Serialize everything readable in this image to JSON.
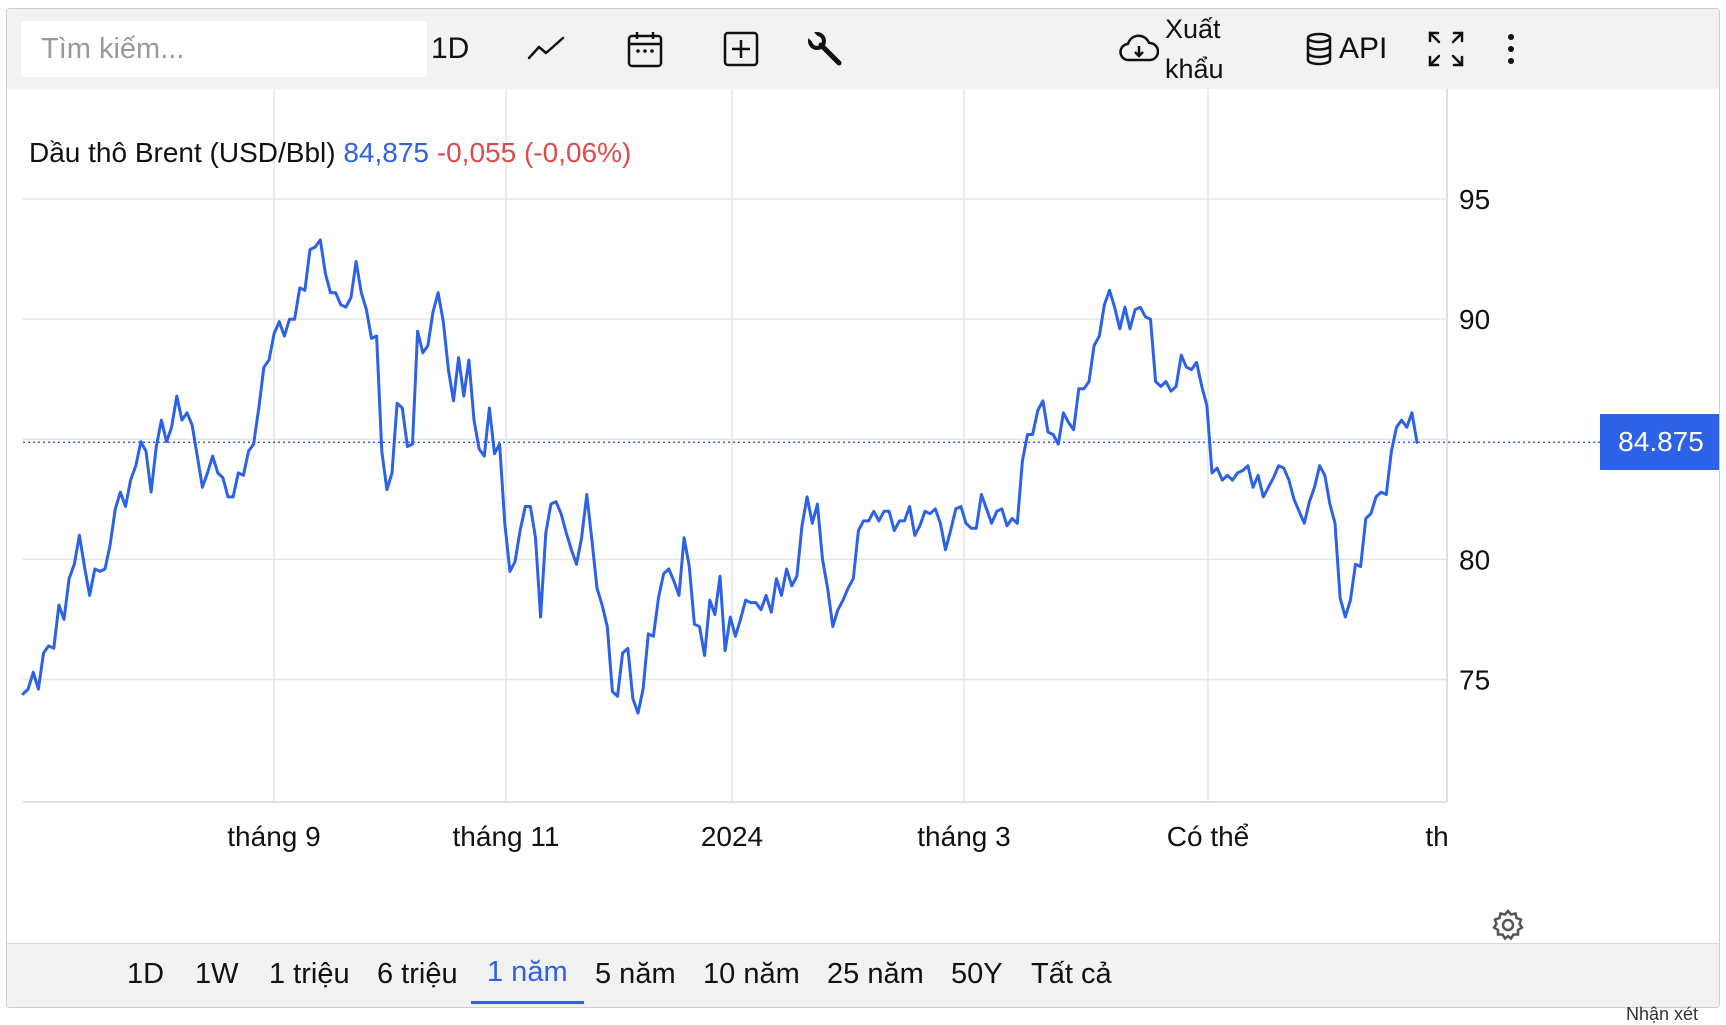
{
  "search": {
    "placeholder": "Tìm kiếm..."
  },
  "toolbar": {
    "interval_label": "1D",
    "export_label_1": "Xuất",
    "export_label_2": "khẩu",
    "api_label": "API"
  },
  "legend": {
    "name": "Dầu thô Brent (USD/Bbl)",
    "price": "84,875",
    "change": "-0,055 (-0,06%)"
  },
  "price_tag": "84.875",
  "ranges": [
    {
      "label": "1D",
      "active": false
    },
    {
      "label": "1W",
      "active": false
    },
    {
      "label": "1 triệu",
      "active": false
    },
    {
      "label": "6 triệu",
      "active": false
    },
    {
      "label": "1 năm",
      "active": true
    },
    {
      "label": "5 năm",
      "active": false
    },
    {
      "label": "10 năm",
      "active": false
    },
    {
      "label": "25 năm",
      "active": false
    },
    {
      "label": "50Y",
      "active": false
    },
    {
      "label": "Tất cả",
      "active": false
    }
  ],
  "footer_note": "Nhận xét",
  "colors": {
    "line": "#2d62e6",
    "negative": "#e04a4a",
    "grid": "#e6e6e6",
    "toolbar_bg": "#f2f2f2"
  },
  "chart_data": {
    "type": "line",
    "series": [
      {
        "name": "Dầu thô Brent (USD/Bbl)",
        "values": [
          74.4,
          74.6,
          75.3,
          74.6,
          76.1,
          76.4,
          76.3,
          78.1,
          77.5,
          79.2,
          79.8,
          81.0,
          79.7,
          78.5,
          79.6,
          79.5,
          79.6,
          80.6,
          82.1,
          82.8,
          82.2,
          83.3,
          83.9,
          84.9,
          84.5,
          82.8,
          84.7,
          85.8,
          84.9,
          85.5,
          86.8,
          85.8,
          86.1,
          85.6,
          84.3,
          83.0,
          83.6,
          84.3,
          83.6,
          83.4,
          82.6,
          82.6,
          83.6,
          83.5,
          84.5,
          84.8,
          86.3,
          88.0,
          88.3,
          89.4,
          89.9,
          89.3,
          90.0,
          90.0,
          91.3,
          91.2,
          92.9,
          93.0,
          93.3,
          91.9,
          91.1,
          91.1,
          90.6,
          90.5,
          90.9,
          92.4,
          91.1,
          90.4,
          89.2,
          89.3,
          84.5,
          82.9,
          83.6,
          86.5,
          86.3,
          84.7,
          84.8,
          89.5,
          88.6,
          88.9,
          90.3,
          91.1,
          89.9,
          87.9,
          86.6,
          88.4,
          86.8,
          88.3,
          85.8,
          84.6,
          84.3,
          86.3,
          84.4,
          84.8,
          81.5,
          79.5,
          79.9,
          81.2,
          82.2,
          82.2,
          80.9,
          77.6,
          81.1,
          82.3,
          82.4,
          81.9,
          81.1,
          80.4,
          79.8,
          80.9,
          82.7,
          80.8,
          78.8,
          78.1,
          77.2,
          74.5,
          74.3,
          76.1,
          76.3,
          74.2,
          73.6,
          74.6,
          76.9,
          76.8,
          78.4,
          79.4,
          79.6,
          79.1,
          78.5,
          80.9,
          79.7,
          77.3,
          77.2,
          76.0,
          78.3,
          77.7,
          79.3,
          76.2,
          77.6,
          76.8,
          77.5,
          78.3,
          78.2,
          78.2,
          77.9,
          78.5,
          77.8,
          79.2,
          78.5,
          79.6,
          78.9,
          79.3,
          81.4,
          82.6,
          81.5,
          82.3,
          80.0,
          78.8,
          77.2,
          77.9,
          78.3,
          78.8,
          79.2,
          81.2,
          81.6,
          81.6,
          82.0,
          81.6,
          82.0,
          82.0,
          81.2,
          81.6,
          81.6,
          82.2,
          81.0,
          81.4,
          82.0,
          81.9,
          82.1,
          81.5,
          80.4,
          81.2,
          82.1,
          82.2,
          81.5,
          81.3,
          81.3,
          82.7,
          82.1,
          81.5,
          82.0,
          82.1,
          81.4,
          81.7,
          81.5,
          84.1,
          85.2,
          85.2,
          86.2,
          86.6,
          85.3,
          85.2,
          84.8,
          86.1,
          85.7,
          85.4,
          87.1,
          87.1,
          87.4,
          88.9,
          89.3,
          90.6,
          91.2,
          90.5,
          89.6,
          90.5,
          89.6,
          90.4,
          90.5,
          90.1,
          90.0,
          87.4,
          87.2,
          87.4,
          87.0,
          87.2,
          88.5,
          88.0,
          87.9,
          88.2,
          87.2,
          86.4,
          83.6,
          83.8,
          83.3,
          83.5,
          83.3,
          83.6,
          83.7,
          83.9,
          83.0,
          83.5,
          82.6,
          83.0,
          83.4,
          83.9,
          83.8,
          83.3,
          82.5,
          82.0,
          81.5,
          82.4,
          83.0,
          83.9,
          83.5,
          82.3,
          81.5,
          78.4,
          77.6,
          78.3,
          79.8,
          79.7,
          81.7,
          81.9,
          82.6,
          82.8,
          82.7,
          84.5,
          85.5,
          85.8,
          85.5,
          86.1,
          84.875
        ]
      }
    ],
    "x_tick_labels": [
      "tháng 9",
      "tháng 11",
      "2024",
      "tháng 3",
      "Có thể",
      "th"
    ],
    "y_ticks": [
      75,
      80,
      85,
      90,
      95
    ],
    "y_tick_labels": [
      "75",
      "80",
      "90",
      "95"
    ],
    "ylim": [
      69.9,
      97.5
    ],
    "last_value": 84.875,
    "grid": true,
    "axis_side": "right"
  }
}
